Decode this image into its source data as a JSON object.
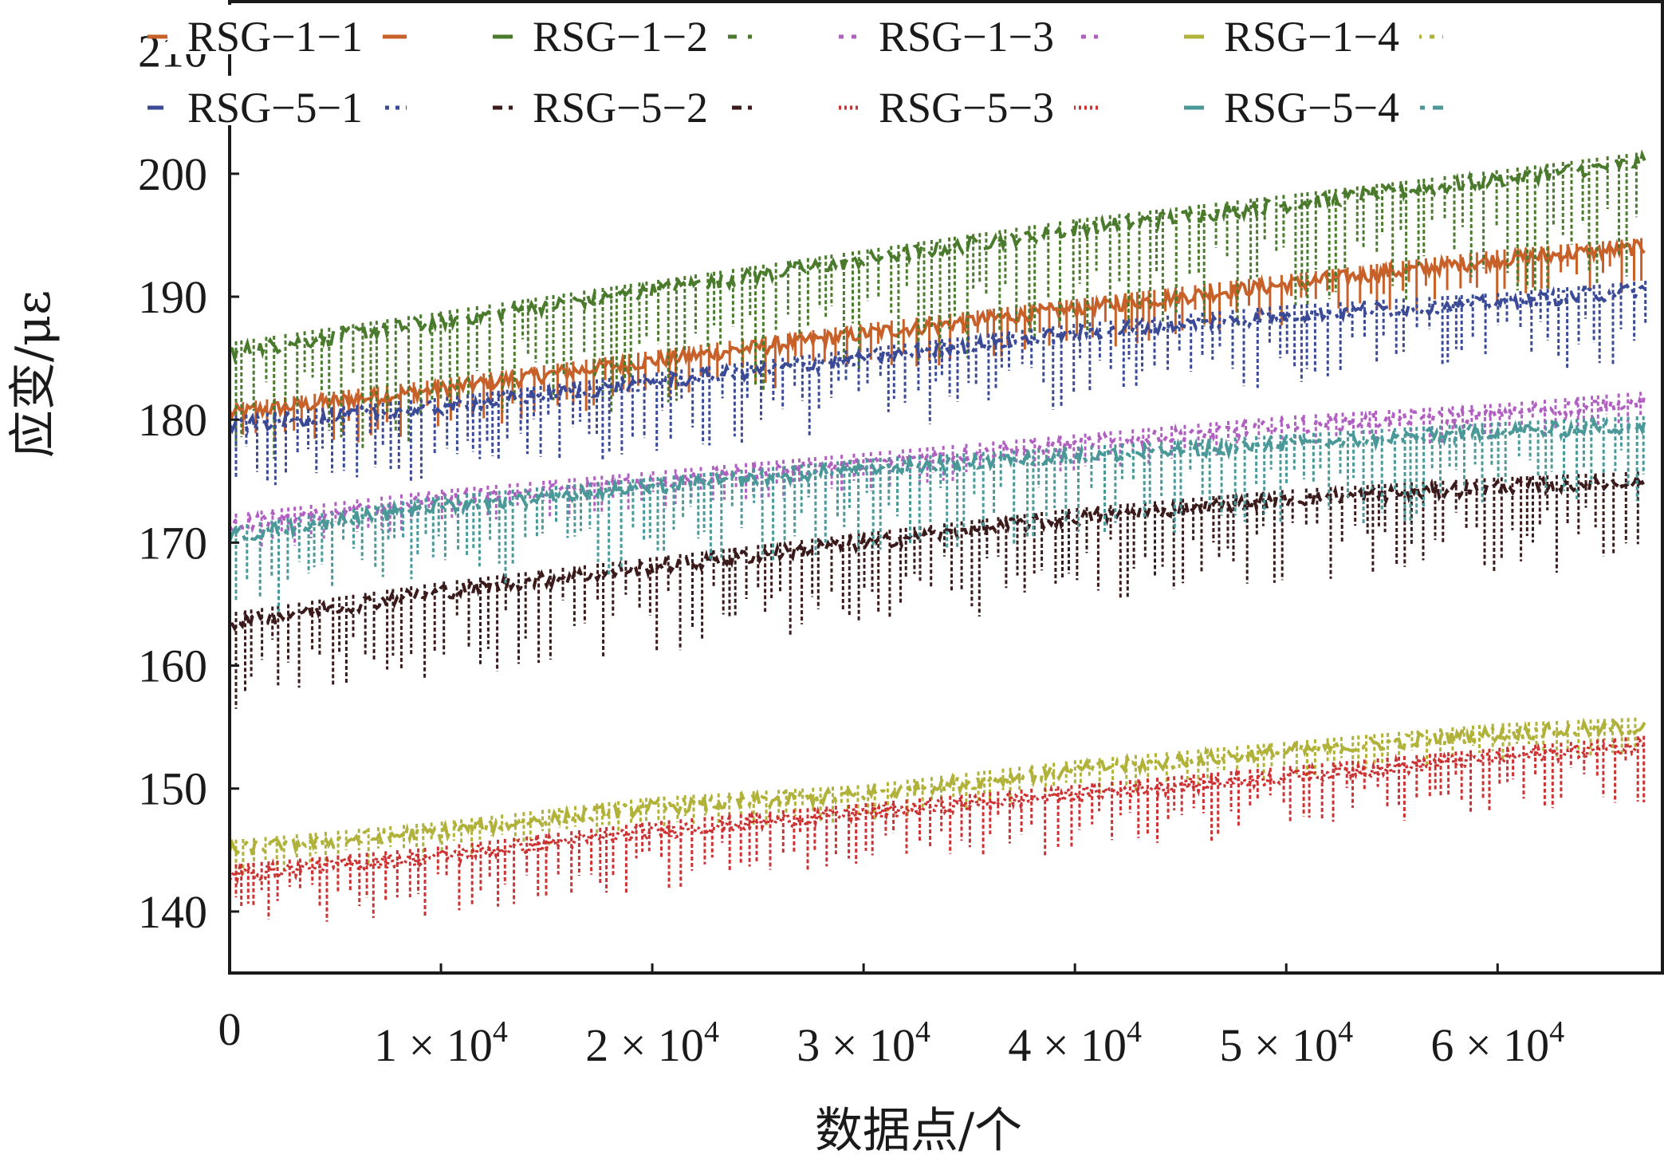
{
  "chart_data": {
    "type": "line",
    "xlabel": "数据点/个",
    "ylabel": "应变/με",
    "xlim": [
      0,
      67800
    ],
    "ylim": [
      135,
      214
    ],
    "x_ticks": [
      {
        "value": 0,
        "label": "0"
      },
      {
        "value": 10000,
        "label": "1 × 10",
        "exp": "4"
      },
      {
        "value": 20000,
        "label": "2 × 10",
        "exp": "4"
      },
      {
        "value": 30000,
        "label": "3 × 10",
        "exp": "4"
      },
      {
        "value": 40000,
        "label": "4 × 10",
        "exp": "4"
      },
      {
        "value": 50000,
        "label": "5 × 10",
        "exp": "4"
      },
      {
        "value": 60000,
        "label": "6 × 10",
        "exp": "4"
      }
    ],
    "y_ticks": [
      140,
      150,
      160,
      170,
      180,
      190,
      200,
      210
    ],
    "legend_position": "top",
    "series": [
      {
        "name": "RSG−1−1",
        "color": "#c8602a",
        "dash": "",
        "x": [
          0,
          10000,
          20000,
          30000,
          40000,
          50000,
          60000,
          67000
        ],
        "y": [
          180.5,
          182.5,
          184.8,
          187.0,
          189.0,
          191.0,
          193.0,
          194.0
        ],
        "spike_depth": 3
      },
      {
        "name": "RSG−1−2",
        "color": "#4a7a2c",
        "dash": "26,14",
        "x": [
          0,
          10000,
          20000,
          30000,
          40000,
          50000,
          60000,
          67000
        ],
        "y": [
          185.5,
          188.0,
          190.5,
          193.0,
          195.5,
          197.5,
          199.5,
          201.0
        ],
        "spike_depth": 8
      },
      {
        "name": "RSG−1−3",
        "color": "#b060c0",
        "dash": "6,10",
        "x": [
          0,
          10000,
          20000,
          30000,
          40000,
          50000,
          60000,
          67000
        ],
        "y": [
          171.5,
          173.5,
          175.0,
          176.5,
          178.0,
          179.5,
          180.5,
          181.5
        ],
        "spike_depth": 2
      },
      {
        "name": "RSG−1−4",
        "color": "#b0b23a",
        "dash": "28,10,6,10",
        "x": [
          0,
          10000,
          20000,
          30000,
          40000,
          50000,
          60000,
          67000
        ],
        "y": [
          145.0,
          146.5,
          148.5,
          149.5,
          151.5,
          153.0,
          154.5,
          155.0
        ],
        "spike_depth": 2
      },
      {
        "name": "RSG−5−1",
        "color": "#3a4a96",
        "dash": "20,8,5,8,5,8",
        "x": [
          0,
          10000,
          20000,
          30000,
          40000,
          50000,
          60000,
          67000
        ],
        "y": [
          179.5,
          181.0,
          183.0,
          185.0,
          187.0,
          188.5,
          189.5,
          190.5
        ],
        "spike_depth": 5
      },
      {
        "name": "RSG−5−2",
        "color": "#3a1a1a",
        "dash": "12,8",
        "x": [
          0,
          10000,
          20000,
          30000,
          40000,
          50000,
          60000,
          67000
        ],
        "y": [
          163.5,
          166.0,
          168.0,
          170.0,
          172.0,
          173.5,
          174.5,
          175.0
        ],
        "spike_depth": 6
      },
      {
        "name": "RSG−5−3",
        "color": "#cc3232",
        "dash": "3,4",
        "x": [
          0,
          10000,
          20000,
          30000,
          40000,
          50000,
          60000,
          67000
        ],
        "y": [
          143.0,
          144.5,
          146.5,
          148.0,
          149.5,
          151.0,
          152.5,
          153.5
        ],
        "spike_depth": 4
      },
      {
        "name": "RSG−5−4",
        "color": "#4a9898",
        "dash": "26,10,6,10",
        "x": [
          0,
          10000,
          20000,
          30000,
          40000,
          50000,
          60000,
          67000
        ],
        "y": [
          170.5,
          173.0,
          174.5,
          176.0,
          177.0,
          178.0,
          179.0,
          179.5
        ],
        "spike_depth": 6
      }
    ]
  }
}
